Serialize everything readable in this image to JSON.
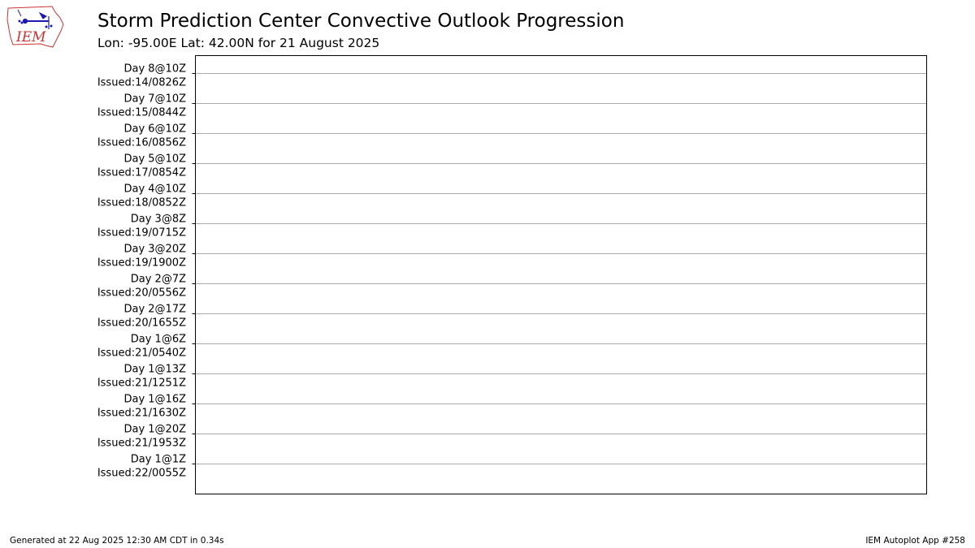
{
  "header": {
    "title": "Storm Prediction Center Convective Outlook Progression",
    "subtitle": "Lon: -95.00E Lat: 42.00N for 21 August 2025"
  },
  "logo": {
    "text": "IEM",
    "outline_color": "#cc3333",
    "icon_color": "#1a1ab0"
  },
  "chart_data": {
    "type": "table",
    "title": "Storm Prediction Center Convective Outlook Progression",
    "subtitle": "Lon: -95.00E Lat: 42.00N for 21 August 2025",
    "grid": true,
    "gridline_color": "#aaaaaa",
    "rows": [
      {
        "line1": "Day 8@10Z",
        "line2": "Issued:14/0826Z"
      },
      {
        "line1": "Day 7@10Z",
        "line2": "Issued:15/0844Z"
      },
      {
        "line1": "Day 6@10Z",
        "line2": "Issued:16/0856Z"
      },
      {
        "line1": "Day 5@10Z",
        "line2": "Issued:17/0854Z"
      },
      {
        "line1": "Day 4@10Z",
        "line2": "Issued:18/0852Z"
      },
      {
        "line1": "Day 3@8Z",
        "line2": "Issued:19/0715Z"
      },
      {
        "line1": "Day 3@20Z",
        "line2": "Issued:19/1900Z"
      },
      {
        "line1": "Day 2@7Z",
        "line2": "Issued:20/0556Z"
      },
      {
        "line1": "Day 2@17Z",
        "line2": "Issued:20/1655Z"
      },
      {
        "line1": "Day 1@6Z",
        "line2": "Issued:21/0540Z"
      },
      {
        "line1": "Day 1@13Z",
        "line2": "Issued:21/1251Z"
      },
      {
        "line1": "Day 1@16Z",
        "line2": "Issued:21/1630Z"
      },
      {
        "line1": "Day 1@20Z",
        "line2": "Issued:21/1953Z"
      },
      {
        "line1": "Day 1@1Z",
        "line2": "Issued:22/0055Z"
      }
    ]
  },
  "footer": {
    "generated": "Generated at 22 Aug 2025 12:30 AM CDT in 0.34s",
    "app": "IEM Autoplot App #258"
  }
}
